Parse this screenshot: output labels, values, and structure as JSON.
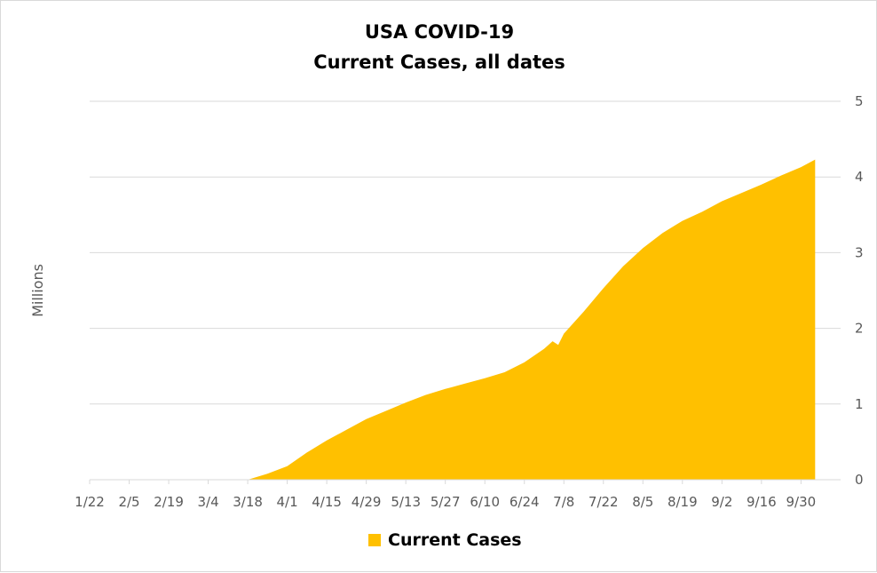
{
  "chart_data": {
    "type": "area",
    "title": "USA COVID-19",
    "subtitle": "Current Cases, all dates",
    "ylabel": "Millions",
    "ylim": [
      0,
      5
    ],
    "y_ticks": [
      "0",
      "1",
      "2",
      "3",
      "4",
      "5"
    ],
    "y_axis_side": "right",
    "x_ticks": [
      "1/22",
      "2/5",
      "2/19",
      "3/4",
      "3/18",
      "4/1",
      "4/15",
      "4/29",
      "5/13",
      "5/27",
      "6/10",
      "6/24",
      "7/8",
      "7/22",
      "8/5",
      "8/19",
      "9/2",
      "9/16",
      "9/30"
    ],
    "grid": true,
    "legend_position": "bottom",
    "color": "#FFC000",
    "series": [
      {
        "name": "Current Cases",
        "x": [
          "1/22",
          "3/18",
          "3/25",
          "4/1",
          "4/8",
          "4/15",
          "4/22",
          "4/29",
          "5/6",
          "5/13",
          "5/20",
          "5/27",
          "6/3",
          "6/10",
          "6/17",
          "6/24",
          "7/1",
          "7/4",
          "7/6",
          "7/8",
          "7/15",
          "7/22",
          "7/29",
          "8/5",
          "8/12",
          "8/19",
          "8/26",
          "9/2",
          "9/9",
          "9/16",
          "9/23",
          "9/30",
          "10/5"
        ],
        "values": [
          0,
          0.0,
          0.08,
          0.18,
          0.36,
          0.52,
          0.66,
          0.8,
          0.91,
          1.02,
          1.12,
          1.2,
          1.27,
          1.34,
          1.42,
          1.55,
          1.73,
          1.83,
          1.78,
          1.93,
          2.22,
          2.53,
          2.82,
          3.06,
          3.26,
          3.42,
          3.54,
          3.68,
          3.79,
          3.9,
          4.02,
          4.13,
          4.23
        ]
      }
    ]
  }
}
